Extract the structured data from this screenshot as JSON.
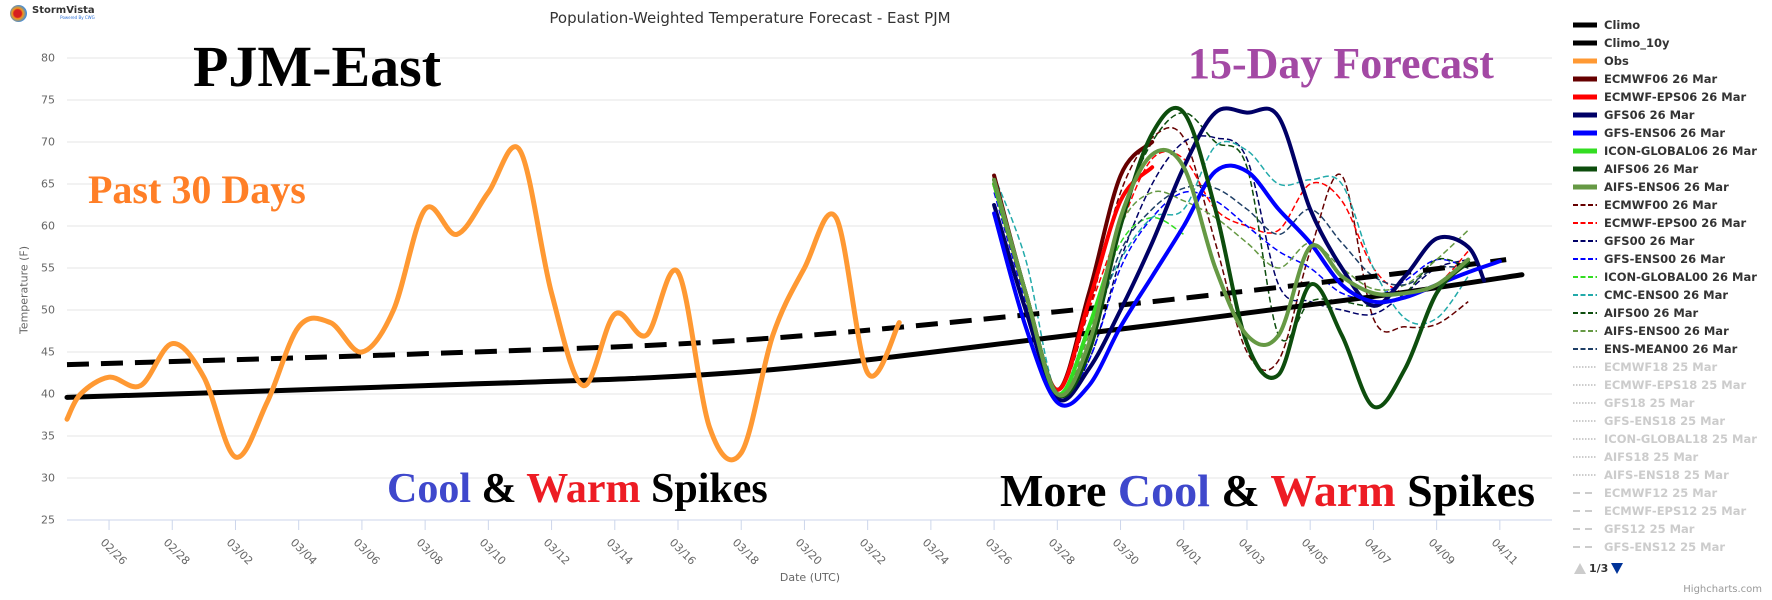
{
  "brand": {
    "name": "StormVista",
    "sub": "Powered By CWG"
  },
  "credits": "Highcharts.com",
  "overlays": {
    "pjm": "PJM-East",
    "past": "Past 30 Days",
    "forecast": "15-Day Forecast",
    "spikes1": {
      "cool": "Cool",
      "amp": " & ",
      "warm": "Warm",
      "spikes": " Spikes"
    },
    "spikes2": {
      "more": "More ",
      "cool": "Cool",
      "amp": " & ",
      "warm": "Warm",
      "spikes": " Spikes"
    }
  },
  "legend_nav": {
    "page": "1/3"
  },
  "chart_data": {
    "type": "line",
    "title": "Population-Weighted Temperature Forecast - East PJM",
    "xlabel": "Date (UTC)",
    "ylabel": "Temperature (F)",
    "ylim": [
      25,
      80
    ],
    "yticks": [
      "80",
      "75",
      "70",
      "65",
      "60",
      "55",
      "50",
      "45",
      "40",
      "35",
      "30",
      "25"
    ],
    "xlim_days_from_0226": [
      -1.33,
      45.65
    ],
    "xticks": [
      "02/26",
      "02/28",
      "03/02",
      "03/04",
      "03/06",
      "03/08",
      "03/10",
      "03/12",
      "03/14",
      "03/16",
      "03/18",
      "03/20",
      "03/22",
      "03/24",
      "03/26",
      "03/28",
      "03/30",
      "04/01",
      "04/03",
      "04/05",
      "04/07",
      "04/09",
      "04/11"
    ],
    "grid": true,
    "legend_position": "right",
    "series": [
      {
        "name": "Climo",
        "color": "#000000",
        "style": "solid",
        "width": 5,
        "visible": true,
        "x": [
          -1.33,
          10,
          20,
          30,
          40,
          44.7
        ],
        "y": [
          39.6,
          41.0,
          42.6,
          46.8,
          51.6,
          54.2
        ]
      },
      {
        "name": "Climo_10y",
        "color": "#000000",
        "style": "dash",
        "width": 5,
        "visible": true,
        "x": [
          -1.33,
          10,
          20,
          30,
          40,
          44.2
        ],
        "y": [
          43.5,
          44.8,
          46.4,
          49.8,
          54.0,
          56.0
        ]
      },
      {
        "name": "Obs",
        "color": "#ff9933",
        "style": "solid",
        "width": 5,
        "visible": true,
        "x": [
          -1.33,
          -0.9,
          0,
          1,
          2,
          3,
          4,
          5,
          6,
          7,
          8,
          9,
          10,
          11,
          12,
          13,
          14,
          15,
          16,
          17,
          18,
          19,
          20,
          21,
          22,
          23,
          24,
          25
        ],
        "y": [
          37,
          40,
          42,
          41,
          46,
          42,
          32.5,
          39,
          48,
          48.5,
          45,
          50,
          62,
          59,
          64,
          69,
          52,
          41,
          49.5,
          47,
          54.5,
          36,
          33,
          47,
          55,
          61,
          42.5,
          48.5
        ]
      },
      {
        "name": "ECMWF06 26 Mar",
        "color": "#660000",
        "style": "solid",
        "width": 4,
        "visible": true,
        "x": [
          28,
          29,
          30,
          31,
          32,
          33
        ],
        "y": [
          66,
          52,
          40.5,
          52,
          66,
          70
        ]
      },
      {
        "name": "ECMWF-EPS06 26 Mar",
        "color": "#ff0000",
        "style": "solid",
        "width": 4,
        "visible": true,
        "x": [
          28,
          29,
          30,
          31,
          32,
          33
        ],
        "y": [
          65,
          52,
          40.5,
          51,
          63,
          67
        ]
      },
      {
        "name": "GFS06 26 Mar",
        "color": "#000066",
        "style": "solid",
        "width": 4,
        "visible": true,
        "x": [
          28,
          29,
          30,
          31,
          32,
          33,
          34,
          35,
          36,
          37,
          38,
          39,
          40,
          41,
          42,
          43,
          43.5
        ],
        "y": [
          62.5,
          50,
          39.5,
          43,
          50,
          58,
          67,
          73.5,
          73.5,
          73,
          62,
          55,
          50.5,
          54,
          58.5,
          57.5,
          53.5
        ]
      },
      {
        "name": "GFS-ENS06 26 Mar",
        "color": "#0000ff",
        "style": "solid",
        "width": 4,
        "visible": true,
        "x": [
          28,
          29,
          30,
          31,
          32,
          33,
          34,
          35,
          36,
          37,
          38,
          39,
          40,
          41,
          42,
          43,
          44
        ],
        "y": [
          61.5,
          48,
          39,
          41,
          48,
          54,
          60,
          66.5,
          66.5,
          62,
          58,
          53,
          51,
          51.5,
          53,
          54.5,
          55.8
        ]
      },
      {
        "name": "ICON-GLOBAL06 26 Mar",
        "color": "#33dd22",
        "style": "solid",
        "width": 4,
        "visible": true,
        "x": [
          28,
          29,
          30,
          31,
          32
        ],
        "y": [
          65,
          52,
          40,
          48,
          60
        ]
      },
      {
        "name": "AIFS06 26 Mar",
        "color": "#0d4d0d",
        "style": "solid",
        "width": 4,
        "visible": true,
        "x": [
          28,
          29,
          30,
          31,
          32,
          33,
          34,
          35,
          36,
          37,
          38,
          39,
          40,
          41,
          42,
          43
        ],
        "y": [
          65.5,
          52,
          40,
          45,
          60,
          71,
          73.5,
          62,
          46,
          42.3,
          53,
          47,
          38.5,
          43,
          52,
          55.7
        ]
      },
      {
        "name": "AIFS-ENS06 26 Mar",
        "color": "#669944",
        "style": "solid",
        "width": 4,
        "visible": true,
        "x": [
          28,
          29,
          30,
          31,
          32,
          33,
          34,
          35,
          36,
          37,
          38,
          39,
          40,
          41,
          42,
          43
        ],
        "y": [
          65.5,
          52,
          40,
          46,
          61,
          68.5,
          67,
          55,
          47,
          47,
          57.5,
          54,
          52,
          52,
          53,
          56
        ]
      },
      {
        "name": "ECMWF00 26 Mar",
        "color": "#660000",
        "style": "dash",
        "width": 1.5,
        "visible": true,
        "x": [
          28,
          29,
          30,
          31,
          32,
          33,
          34,
          35,
          36,
          37,
          38,
          39,
          40,
          41,
          42,
          43
        ],
        "y": [
          65,
          52,
          40.5,
          50,
          64,
          70.5,
          70.5,
          58,
          45,
          44,
          57,
          66,
          49,
          48,
          48.3,
          51
        ]
      },
      {
        "name": "ECMWF-EPS00 26 Mar",
        "color": "#ff0000",
        "style": "dash",
        "width": 1.5,
        "visible": true,
        "x": [
          28,
          29,
          30,
          31,
          32,
          33,
          34,
          35,
          36,
          37,
          38,
          39,
          40,
          41,
          42,
          43
        ],
        "y": [
          65,
          52,
          40.5,
          50,
          60,
          68,
          68,
          62,
          60,
          59.5,
          65,
          63,
          55,
          52,
          53,
          57
        ]
      },
      {
        "name": "GFS00 26 Mar",
        "color": "#000066",
        "style": "dash",
        "width": 1.5,
        "visible": true,
        "x": [
          28,
          29,
          30,
          31,
          32,
          33,
          34,
          35,
          36,
          37,
          38,
          39,
          40,
          41,
          42,
          43
        ],
        "y": [
          65,
          52,
          40,
          44,
          56,
          65,
          70,
          70.5,
          68,
          53,
          51,
          50,
          49.5,
          52,
          55,
          56
        ]
      },
      {
        "name": "GFS-ENS00 26 Mar",
        "color": "#0000ff",
        "style": "dash",
        "width": 1.5,
        "visible": true,
        "x": [
          28,
          29,
          30,
          31,
          32,
          33,
          34,
          35,
          36,
          37,
          38,
          39,
          40,
          41,
          42,
          43
        ],
        "y": [
          64,
          51,
          39.5,
          44,
          55,
          61,
          64,
          63,
          60,
          57,
          55,
          52,
          51.5,
          53.5,
          56,
          55
        ]
      },
      {
        "name": "ICON-GLOBAL00 26 Mar",
        "color": "#33dd22",
        "style": "dash",
        "width": 1.5,
        "visible": true,
        "x": [
          28,
          29,
          30,
          31,
          32,
          33,
          34
        ],
        "y": [
          65,
          52,
          40,
          48,
          58,
          61,
          59
        ]
      },
      {
        "name": "CMC-ENS00 26 Mar",
        "color": "#22aaaa",
        "style": "dash",
        "width": 1.5,
        "visible": true,
        "x": [
          28,
          29,
          30,
          31,
          32,
          33,
          34,
          35,
          36,
          37,
          38,
          39,
          40,
          41,
          42,
          43
        ],
        "y": [
          66,
          56,
          40,
          48,
          56,
          61,
          62,
          69.5,
          69,
          65,
          65.5,
          65,
          55,
          49,
          49,
          54
        ]
      },
      {
        "name": "AIFS00 26 Mar",
        "color": "#0d4d0d",
        "style": "dash",
        "width": 1.5,
        "visible": true,
        "x": [
          28,
          29,
          30,
          31,
          32,
          33,
          34,
          35,
          36,
          37,
          38,
          39,
          40,
          41,
          42,
          43
        ],
        "y": [
          65.5,
          52,
          40,
          46,
          61,
          70,
          73.5,
          70,
          67,
          47,
          51,
          51,
          50.5,
          52,
          56,
          55
        ]
      },
      {
        "name": "AIFS-ENS00 26 Mar",
        "color": "#669944",
        "style": "dash",
        "width": 1.5,
        "visible": true,
        "x": [
          28,
          29,
          30,
          31,
          32,
          33,
          34,
          35,
          36,
          37,
          38,
          39,
          40,
          41,
          42,
          43
        ],
        "y": [
          65.5,
          52,
          40,
          47,
          60,
          64,
          63,
          61,
          58,
          55,
          58,
          55,
          52.5,
          53,
          56,
          59.5
        ]
      },
      {
        "name": "ENS-MEAN00 26 Mar",
        "color": "#1f3f66",
        "style": "dash",
        "width": 1.5,
        "visible": true,
        "x": [
          28,
          29,
          30,
          31,
          32,
          33,
          34,
          35,
          36,
          37,
          38,
          39,
          40,
          41,
          42,
          43
        ],
        "y": [
          65,
          52,
          40,
          46,
          57,
          62,
          64.5,
          64.5,
          62,
          59,
          62,
          58,
          54,
          53,
          55,
          55
        ]
      },
      {
        "name": "ECMWF18 25 Mar",
        "color": "#cccccc",
        "style": "dot",
        "width": 1.5,
        "visible": false
      },
      {
        "name": "ECMWF-EPS18 25 Mar",
        "color": "#cccccc",
        "style": "dot",
        "width": 1.5,
        "visible": false
      },
      {
        "name": "GFS18 25 Mar",
        "color": "#cccccc",
        "style": "dot",
        "width": 1.5,
        "visible": false
      },
      {
        "name": "GFS-ENS18 25 Mar",
        "color": "#cccccc",
        "style": "dot",
        "width": 1.5,
        "visible": false
      },
      {
        "name": "ICON-GLOBAL18 25 Mar",
        "color": "#cccccc",
        "style": "dot",
        "width": 1.5,
        "visible": false
      },
      {
        "name": "AIFS18 25 Mar",
        "color": "#cccccc",
        "style": "dot",
        "width": 1.5,
        "visible": false
      },
      {
        "name": "AIFS-ENS18 25 Mar",
        "color": "#cccccc",
        "style": "dot",
        "width": 1.5,
        "visible": false
      },
      {
        "name": "ECMWF12 25 Mar",
        "color": "#cccccc",
        "style": "longdash",
        "width": 1.5,
        "visible": false
      },
      {
        "name": "ECMWF-EPS12 25 Mar",
        "color": "#cccccc",
        "style": "longdash",
        "width": 1.5,
        "visible": false
      },
      {
        "name": "GFS12 25 Mar",
        "color": "#cccccc",
        "style": "longdash",
        "width": 1.5,
        "visible": false
      },
      {
        "name": "GFS-ENS12 25 Mar",
        "color": "#cccccc",
        "style": "longdash",
        "width": 1.5,
        "visible": false
      }
    ]
  }
}
